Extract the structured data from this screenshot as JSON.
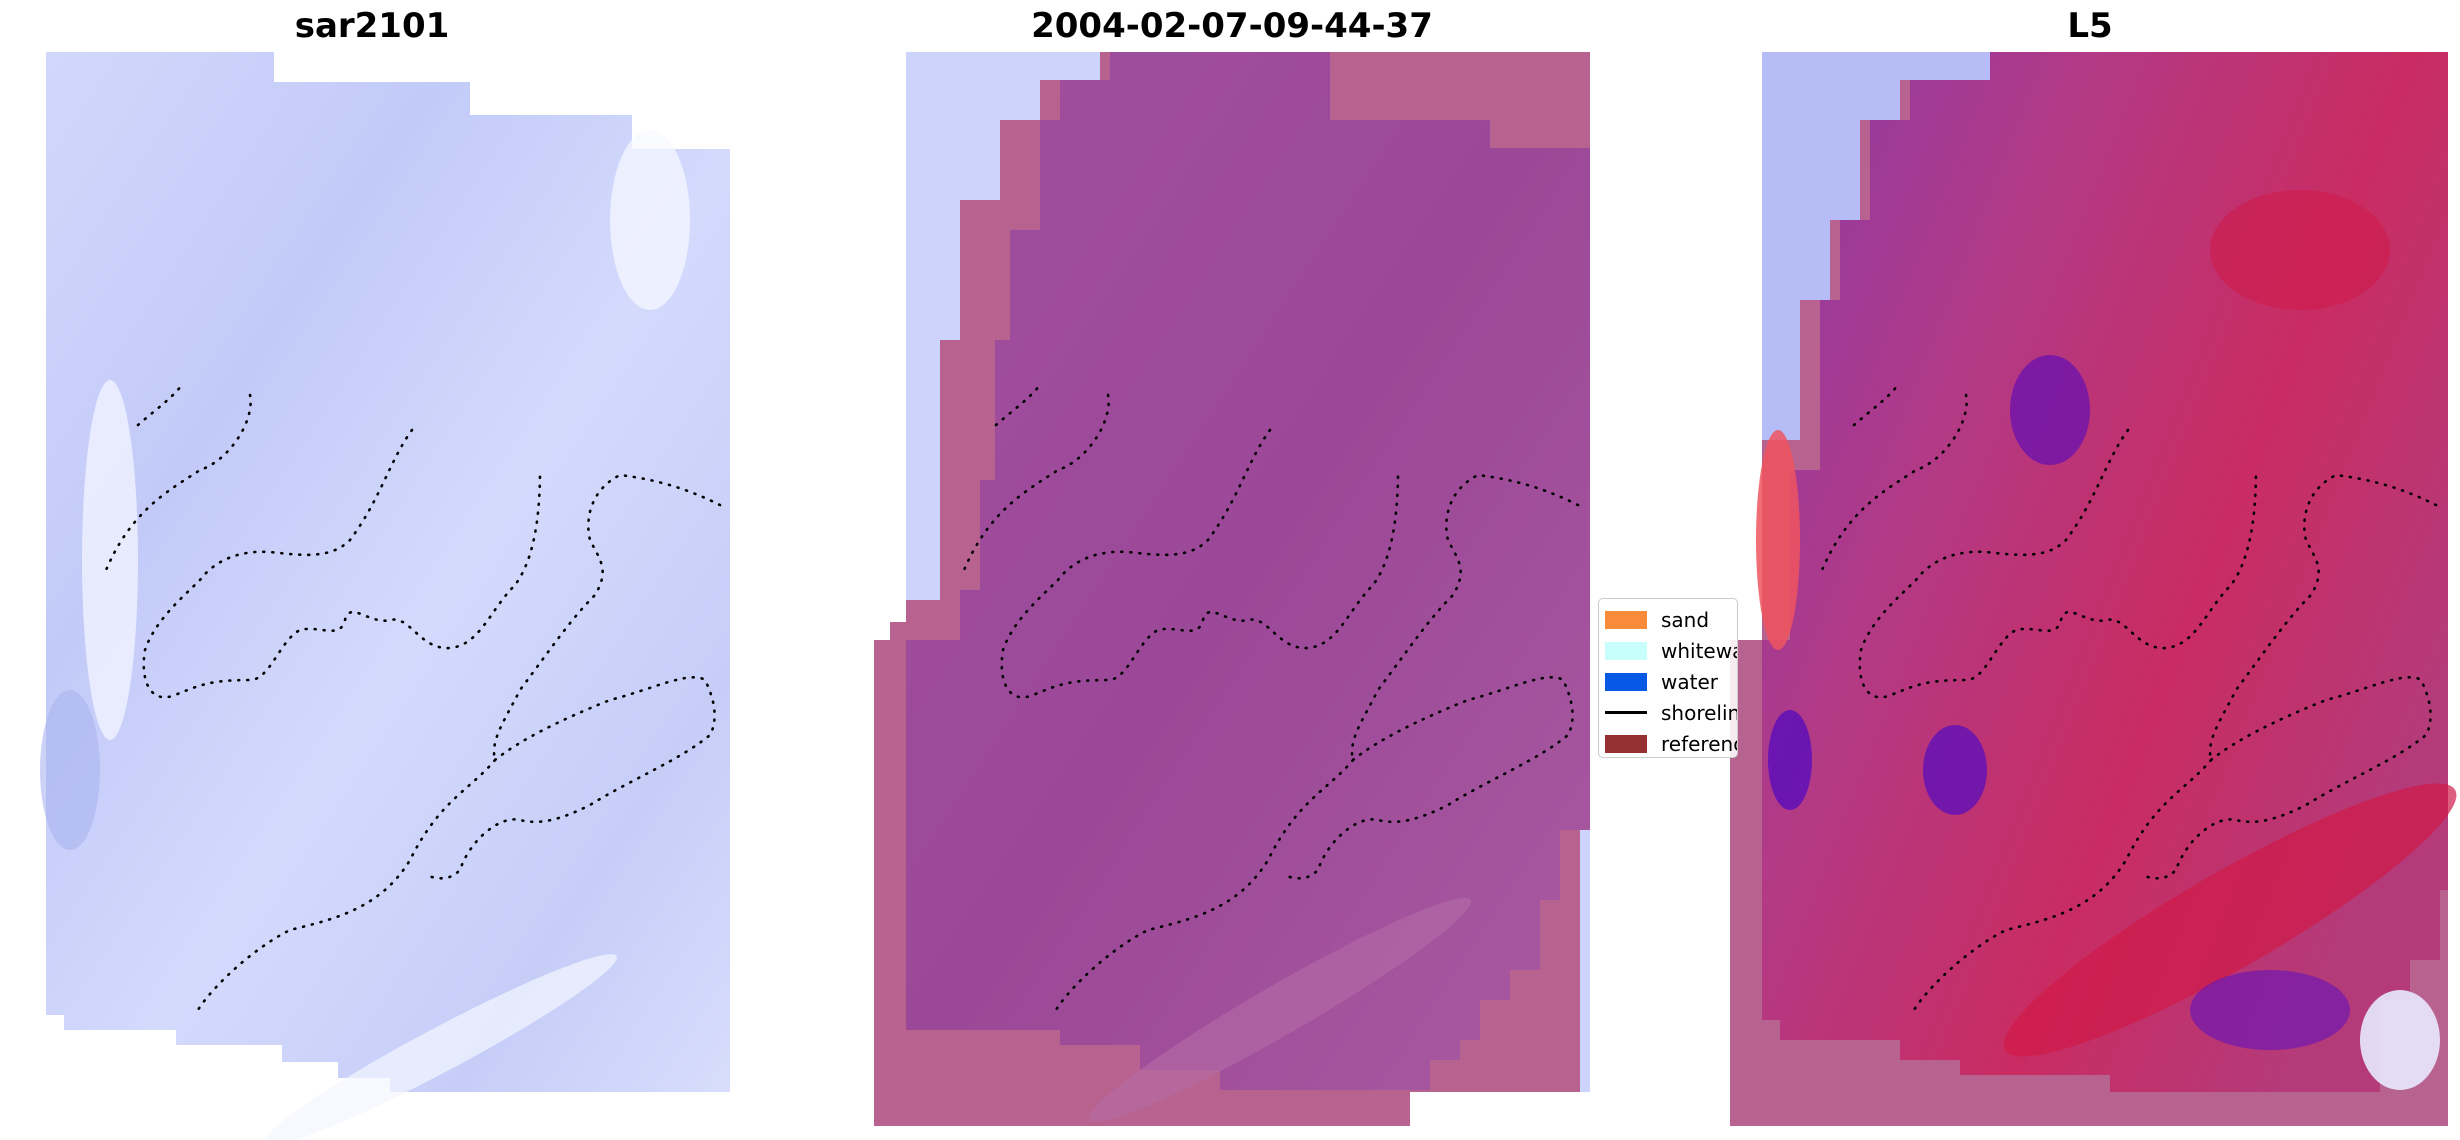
{
  "panels": [
    {
      "title": "sar2101",
      "colorscheme": "light-blue"
    },
    {
      "title": "2004-02-07-09-44-37",
      "colorscheme": "magenta-overlay"
    },
    {
      "title": "L5",
      "colorscheme": "red-blue-diverging"
    }
  ],
  "legend": {
    "items": [
      {
        "label": "sand",
        "color": "#f88b3a",
        "kind": "patch"
      },
      {
        "label": "whitewater",
        "color": "#c8fefc",
        "kind": "patch"
      },
      {
        "label": "water",
        "color": "#0858e6",
        "kind": "patch"
      },
      {
        "label": "shoreline",
        "color": "#000000",
        "kind": "line"
      },
      {
        "label": "reference",
        "color": "#953131",
        "kind": "patch"
      }
    ]
  },
  "colors": {
    "light_blue": "#c8d0fa",
    "magenta": "#a4519b",
    "magenta_edge": "#b7608f",
    "red": "#d02050",
    "purple": "#7a1fb0"
  }
}
